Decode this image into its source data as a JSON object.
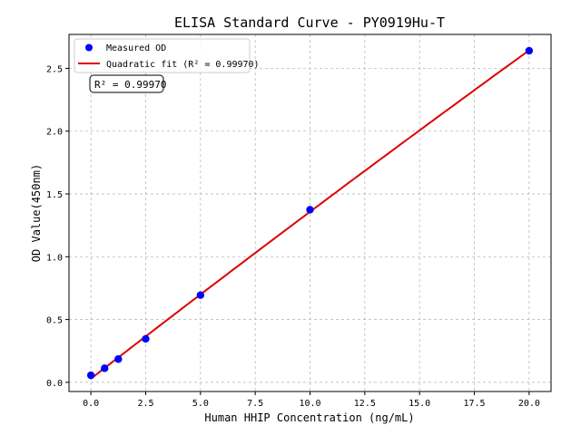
{
  "chart_data": {
    "type": "scatter",
    "title": "ELISA Standard Curve - PY0919Hu-T",
    "xlabel": "Human HHIP Concentration (ng/mL)",
    "ylabel": "OD Value(450nm)",
    "xlim": [
      -1,
      21
    ],
    "ylim": [
      -0.073,
      2.77
    ],
    "xticks": [
      0,
      2.5,
      5,
      7.5,
      10,
      12.5,
      15,
      17.5,
      20
    ],
    "xtick_labels": [
      "0.0",
      "2.5",
      "5.0",
      "7.5",
      "10.0",
      "12.5",
      "15.0",
      "17.5",
      "20.0"
    ],
    "yticks": [
      0,
      0.5,
      1,
      1.5,
      2,
      2.5
    ],
    "ytick_labels": [
      "0.0",
      "0.5",
      "1.0",
      "1.5",
      "2.0",
      "2.5"
    ],
    "grid": true,
    "legend_placement": "top-left",
    "series": [
      {
        "name": "Measured OD",
        "kind": "scatter",
        "color": "#0000ff",
        "x": [
          0,
          0.625,
          1.25,
          2.5,
          5,
          10,
          20
        ],
        "y": [
          0.056,
          0.112,
          0.185,
          0.346,
          0.694,
          1.374,
          2.64
        ]
      },
      {
        "name": "Quadratic fit (R² = 0.99970)",
        "kind": "line",
        "color": "#dd0000"
      }
    ],
    "annotation": "R² = 0.99970"
  }
}
